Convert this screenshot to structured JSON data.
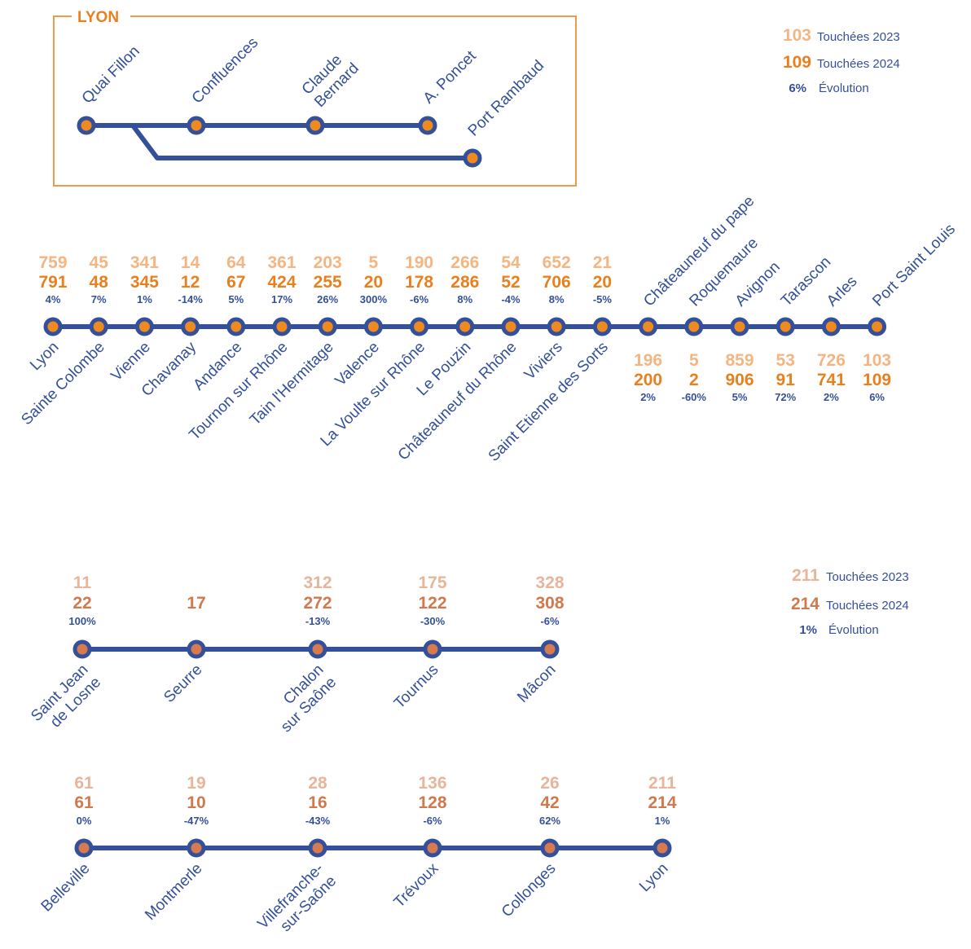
{
  "colors": {
    "line": "#34509a",
    "dot_orange": "#ef8a1f",
    "dot_burgundy": "#d77a4e",
    "value_2023_orange": "#f3b581",
    "value_2024_orange": "#e8801f",
    "value_2023_burgundy": "#e8b59a",
    "value_2024_burgundy": "#cf7a4e",
    "evolution_text": "#34509a"
  },
  "lyon_box": {
    "title": "LYON",
    "stops": [
      "Quai Fillon",
      "Confluences",
      "Claude\nBernard",
      "A. Poncet",
      "Port Rambaud"
    ]
  },
  "legend_rhone": {
    "v2023": "103",
    "label_2023": "Touchées 2023",
    "v2024": "109",
    "label_2024": "Touchées 2024",
    "evolution": "6%",
    "label_evolution": "Évolution"
  },
  "rhone_line": {
    "stops": [
      {
        "name": "Lyon",
        "v2023": "759",
        "v2024": "791",
        "evolution": "4%"
      },
      {
        "name": "Sainte Colombe",
        "v2023": "45",
        "v2024": "48",
        "evolution": "7%"
      },
      {
        "name": "Vienne",
        "v2023": "341",
        "v2024": "345",
        "evolution": "1%"
      },
      {
        "name": "Chavanay",
        "v2023": "14",
        "v2024": "12",
        "evolution": "-14%"
      },
      {
        "name": "Andance",
        "v2023": "64",
        "v2024": "67",
        "evolution": "5%"
      },
      {
        "name": "Tournon sur Rhône",
        "v2023": "361",
        "v2024": "424",
        "evolution": "17%"
      },
      {
        "name": "Tain l'Hermitage",
        "v2023": "203",
        "v2024": "255",
        "evolution": "26%"
      },
      {
        "name": "Valence",
        "v2023": "5",
        "v2024": "20",
        "evolution": "300%"
      },
      {
        "name": "La Voulte sur Rhône",
        "v2023": "190",
        "v2024": "178",
        "evolution": "-6%"
      },
      {
        "name": "Le Pouzin",
        "v2023": "266",
        "v2024": "286",
        "evolution": "8%"
      },
      {
        "name": "Châteauneuf du Rhône",
        "v2023": "54",
        "v2024": "52",
        "evolution": "-4%"
      },
      {
        "name": "Viviers",
        "v2023": "652",
        "v2024": "706",
        "evolution": "8%"
      },
      {
        "name": "Saint Etienne des Sorts",
        "v2023": "21",
        "v2024": "20",
        "evolution": "-5%"
      },
      {
        "name": "Châteauneuf du pape",
        "v2023": "196",
        "v2024": "200",
        "evolution": "2%"
      },
      {
        "name": "Roquemaure",
        "v2023": "5",
        "v2024": "2",
        "evolution": "-60%"
      },
      {
        "name": "Avignon",
        "v2023": "859",
        "v2024": "906",
        "evolution": "5%"
      },
      {
        "name": "Tarascon",
        "v2023": "53",
        "v2024": "91",
        "evolution": "72%"
      },
      {
        "name": "Arles",
        "v2023": "726",
        "v2024": "741",
        "evolution": "2%"
      },
      {
        "name": "Port Saint Louis",
        "v2023": "103",
        "v2024": "109",
        "evolution": "6%"
      }
    ]
  },
  "legend_saone": {
    "v2023": "211",
    "label_2023": "Touchées 2023",
    "v2024": "214",
    "label_2024": "Touchées 2024",
    "evolution": "1%",
    "label_evolution": "Évolution"
  },
  "saone_upper": {
    "stops": [
      {
        "name": "Saint Jean\nde Losne",
        "v2023": "11",
        "v2024": "22",
        "evolution": "100%"
      },
      {
        "name": "Seurre",
        "v2023": "",
        "v2024": "17",
        "evolution": ""
      },
      {
        "name": "Chalon\nsur Saône",
        "v2023": "312",
        "v2024": "272",
        "evolution": "-13%"
      },
      {
        "name": "Tournus",
        "v2023": "175",
        "v2024": "122",
        "evolution": "-30%"
      },
      {
        "name": "Mâcon",
        "v2023": "328",
        "v2024": "308",
        "evolution": "-6%"
      }
    ]
  },
  "saone_lower": {
    "stops": [
      {
        "name": "Belleville",
        "v2023": "61",
        "v2024": "61",
        "evolution": "0%"
      },
      {
        "name": "Montmerle",
        "v2023": "19",
        "v2024": "10",
        "evolution": "-47%"
      },
      {
        "name": "Villefranche-\nsur-Saône",
        "v2023": "28",
        "v2024": "16",
        "evolution": "-43%"
      },
      {
        "name": "Trévoux",
        "v2023": "136",
        "v2024": "128",
        "evolution": "-6%"
      },
      {
        "name": "Collonges",
        "v2023": "26",
        "v2024": "42",
        "evolution": "62%"
      },
      {
        "name": "Lyon",
        "v2023": "211",
        "v2024": "214",
        "evolution": "1%"
      }
    ]
  }
}
